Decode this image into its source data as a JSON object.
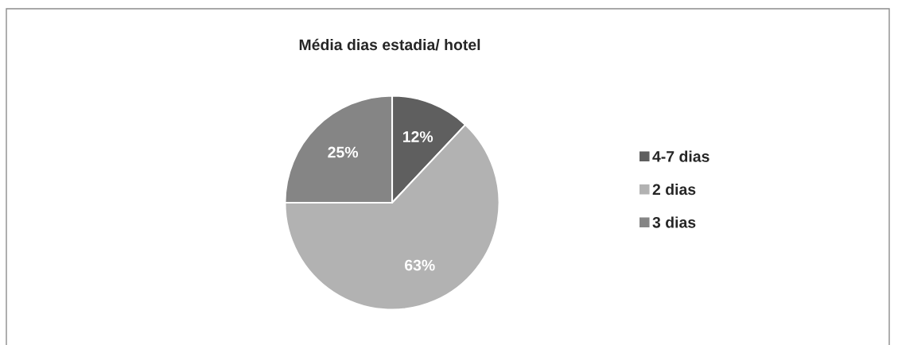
{
  "chart_data": {
    "type": "pie",
    "title": "Média dias estadia/ hotel",
    "categories": [
      "4-7 dias",
      "2 dias",
      "3 dias"
    ],
    "values": [
      12,
      63,
      25
    ],
    "colors": [
      "#5f5f5f",
      "#b2b2b2",
      "#858585"
    ],
    "value_labels": [
      "12%",
      "63%",
      "25%"
    ],
    "legend": "right"
  }
}
